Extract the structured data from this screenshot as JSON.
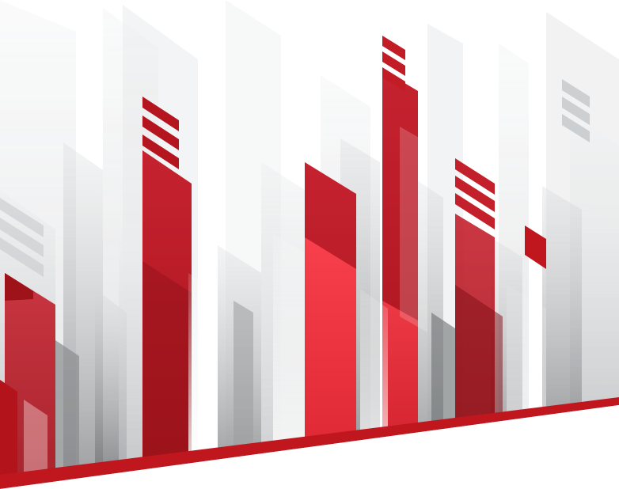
{
  "artwork": {
    "subject": "abstract-skyline-bars",
    "colors": {
      "background": "#ffffff",
      "red_dark": "#a8141c",
      "red_mid": "#c41e28",
      "red_bright": "#ee3340",
      "red_pale": "#f27a86",
      "grey_light": "#dcdee0",
      "grey_mid": "#b3b5b8",
      "grey_dark": "#7f8184",
      "ground": "#c0171f"
    }
  }
}
